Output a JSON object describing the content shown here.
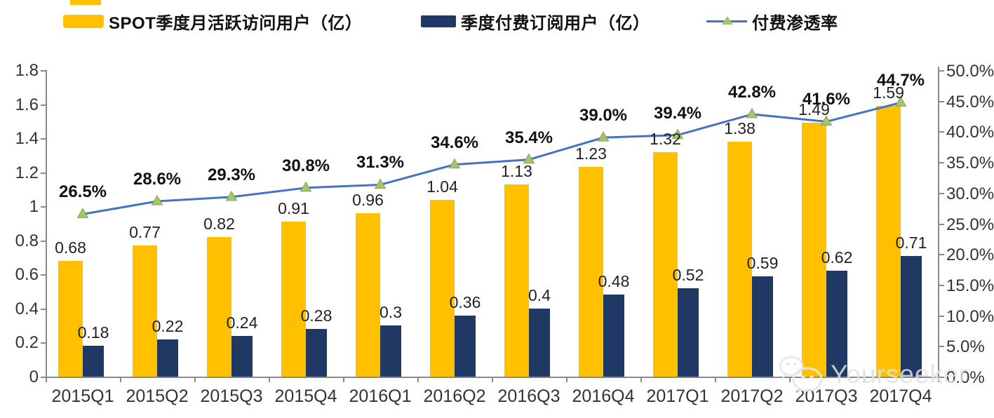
{
  "legend": {
    "items": [
      {
        "label": "SPOT季度月活跃访问用户（亿）",
        "swatch_color": "#FFC000"
      },
      {
        "label": "季度付费订阅用户（亿）",
        "swatch_color": "#1F3864"
      },
      {
        "label": "付费渗透率",
        "line_color": "#4472C4",
        "marker_color": "#A3C66B"
      }
    ]
  },
  "chart_data": {
    "type": "bar",
    "subtype": "combo-bar-line",
    "categories": [
      "2015Q1",
      "2015Q2",
      "2015Q3",
      "2015Q4",
      "2016Q1",
      "2016Q2",
      "2016Q3",
      "2016Q4",
      "2017Q1",
      "2017Q2",
      "2017Q3",
      "2017Q4"
    ],
    "series": [
      {
        "name": "SPOT季度月活跃访问用户（亿）",
        "type": "bar",
        "axis": "left",
        "color": "#FFC000",
        "values": [
          0.68,
          0.77,
          0.82,
          0.91,
          0.96,
          1.04,
          1.13,
          1.23,
          1.32,
          1.38,
          1.49,
          1.59
        ],
        "labels": [
          "0.68",
          "0.77",
          "0.82",
          "0.91",
          "0.96",
          "1.04",
          "1.13",
          "1.23",
          "1.32",
          "1.38",
          "1.49",
          "1.59"
        ]
      },
      {
        "name": "季度付费订阅用户（亿）",
        "type": "bar",
        "axis": "left",
        "color": "#1F3864",
        "values": [
          0.18,
          0.22,
          0.24,
          0.28,
          0.3,
          0.36,
          0.4,
          0.48,
          0.52,
          0.59,
          0.62,
          0.71
        ],
        "labels": [
          "0.18",
          "0.22",
          "0.24",
          "0.28",
          "0.3",
          "0.36",
          "0.4",
          "0.48",
          "0.52",
          "0.59",
          "0.62",
          "0.71"
        ]
      },
      {
        "name": "付费渗透率",
        "type": "line",
        "axis": "right",
        "color": "#4472C4",
        "marker": "triangle",
        "marker_color": "#A3C66B",
        "values": [
          26.5,
          28.6,
          29.3,
          30.8,
          31.3,
          34.6,
          35.4,
          39.0,
          39.4,
          42.8,
          41.6,
          44.7
        ],
        "labels": [
          "26.5%",
          "28.6%",
          "29.3%",
          "30.8%",
          "31.3%",
          "34.6%",
          "35.4%",
          "39.0%",
          "39.4%",
          "42.8%",
          "41.6%",
          "44.7%"
        ]
      }
    ],
    "left_axis": {
      "min": 0,
      "max": 1.8,
      "ticks": [
        "1.8",
        "1.6",
        "1.4",
        "1.2",
        "1",
        "0.8",
        "0.6",
        "0.4",
        "0.2",
        "0"
      ]
    },
    "right_axis": {
      "min": 0,
      "max": 50,
      "ticks": [
        "50.0%",
        "45.0%",
        "40.0%",
        "35.0%",
        "30.0%",
        "25.0%",
        "20.0%",
        "15.0%",
        "10.0%",
        "5.0%",
        "0.0%"
      ]
    },
    "grid": false,
    "legend_position": "top"
  },
  "watermark": {
    "label": "Yourseeker",
    "icon": "wechat-icon"
  }
}
